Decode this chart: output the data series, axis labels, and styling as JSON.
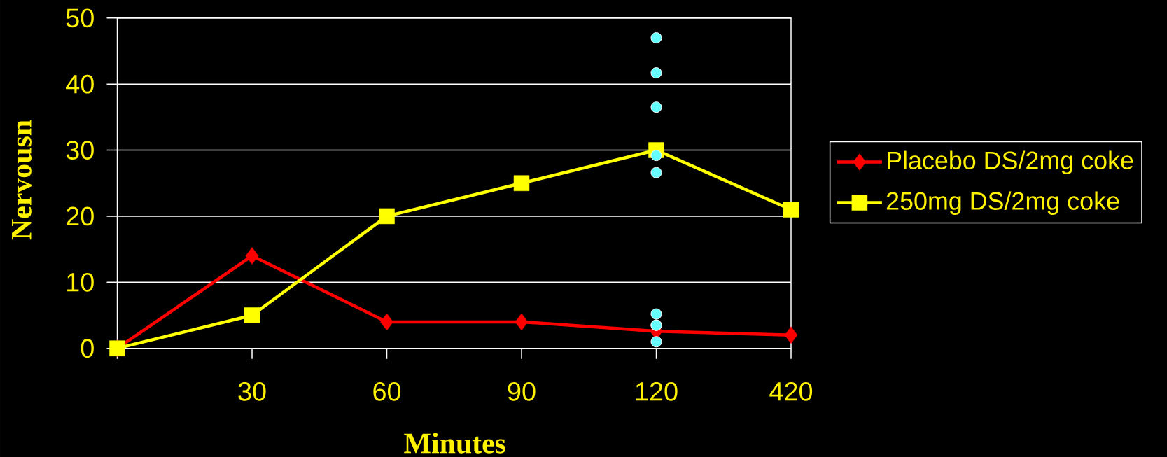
{
  "chart_data": {
    "type": "line",
    "xlabel": "Minutes",
    "ylabel": "Nervousn",
    "categories": [
      null,
      "30",
      "60",
      "90",
      "120",
      "420"
    ],
    "series": [
      {
        "name": "Placebo DS/2mg coke",
        "color": "#ff0000",
        "marker": "diamond",
        "values": [
          0,
          14,
          4,
          4,
          2.6,
          2
        ]
      },
      {
        "name": "250mg DS/2mg coke",
        "color": "#ffff00",
        "marker": "square",
        "values": [
          0,
          5,
          20,
          25,
          30,
          21
        ]
      },
      {
        "type": "scatter",
        "color": "#66ffff",
        "marker": "circle",
        "x": [
          "120",
          "120",
          "120",
          "120",
          "120",
          "120",
          "120",
          "120",
          "120"
        ],
        "values": [
          47,
          41.7,
          36.5,
          29.2,
          26.6,
          5.2,
          3.5,
          3.5,
          1.0
        ]
      }
    ],
    "ylim": [
      0,
      50
    ],
    "yticks": [
      0,
      10,
      20,
      30,
      40,
      50
    ],
    "grid": "y",
    "legend": "right"
  }
}
